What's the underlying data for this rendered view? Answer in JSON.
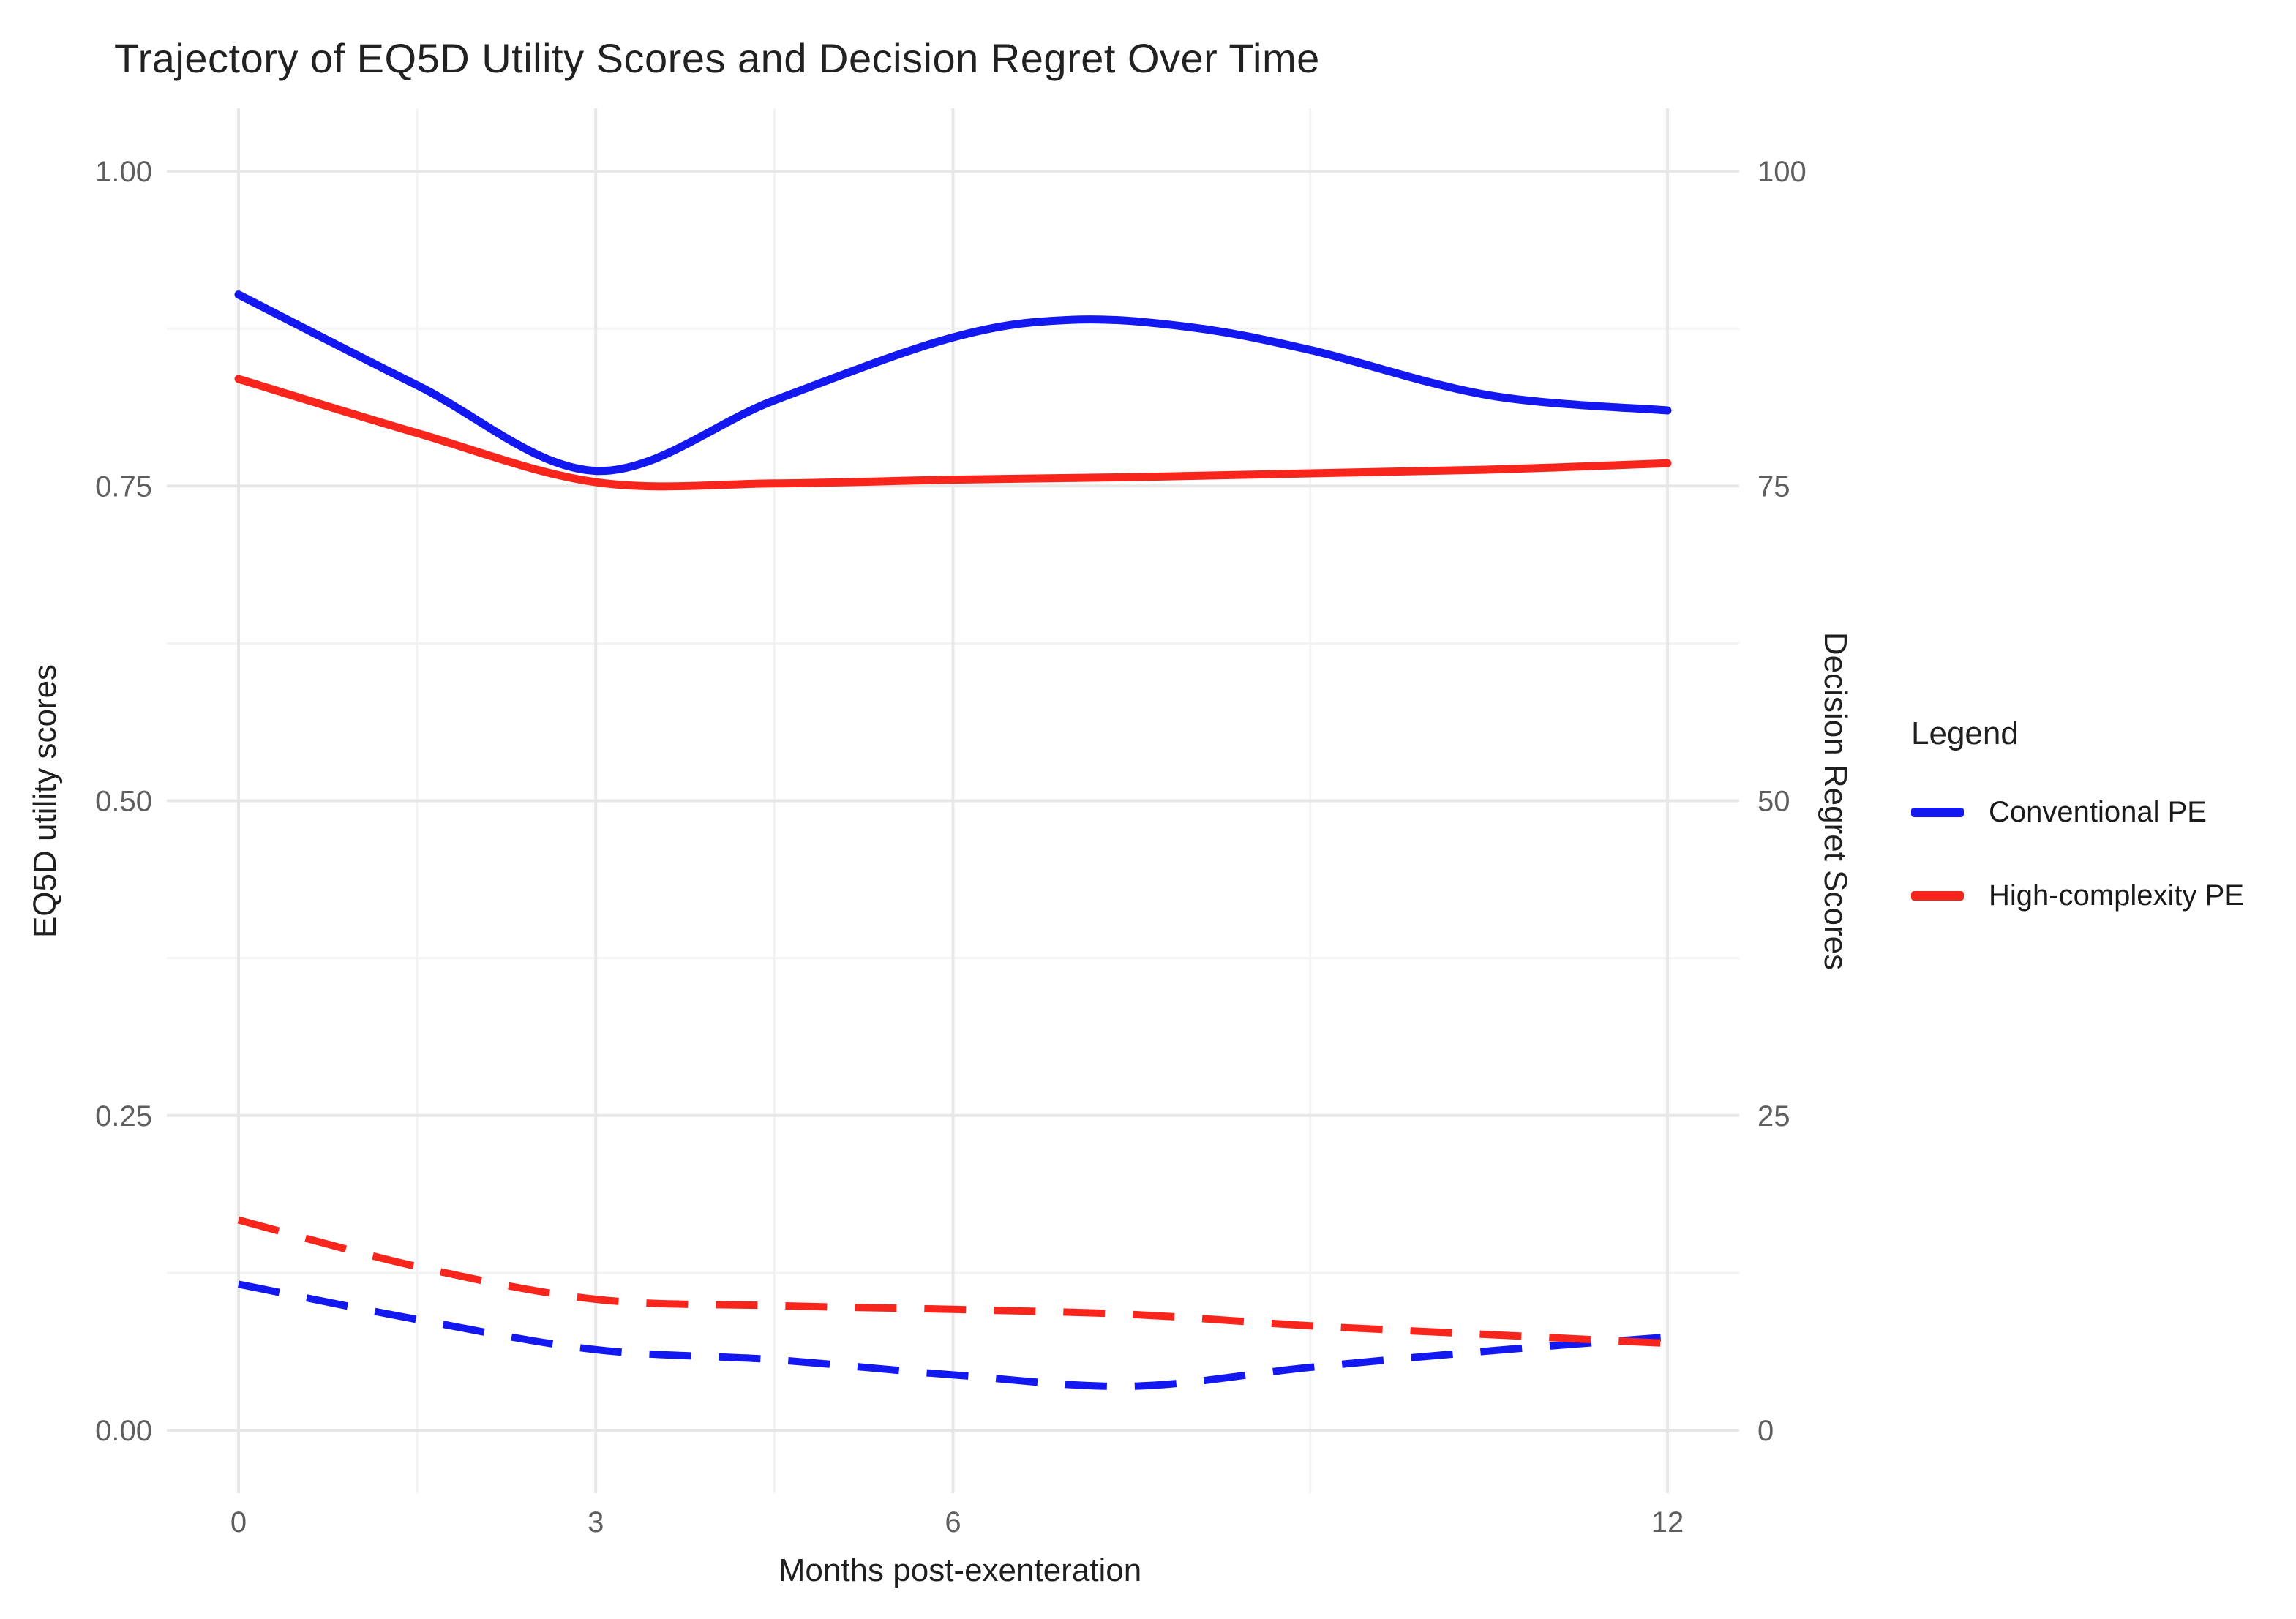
{
  "chart_data": {
    "type": "line",
    "title": "Trajectory of EQ5D Utility Scores and Decision Regret Over Time",
    "xlabel": "Months post-exenteration",
    "ylabel_left": "EQ5D utility scores",
    "ylabel_right": "Decision Regret Scores",
    "background": "#FFFFFF",
    "grid": {
      "major_color": "#E7E7E7",
      "minor_color": "#F3F3F3",
      "grid_on": true
    },
    "tick_label_color": "#5E5E5E",
    "x_axis": {
      "ticks": [
        0,
        3,
        6,
        12
      ],
      "tick_labels": [
        "0",
        "3",
        "6",
        "12"
      ],
      "minor_ticks": [
        1.5,
        4.5,
        9
      ],
      "range": [
        0,
        12
      ]
    },
    "y_axis_left": {
      "ticks": [
        0,
        0.25,
        0.5,
        0.75,
        1
      ],
      "tick_labels": [
        "0.00",
        "0.25",
        "0.50",
        "0.75",
        "1.00"
      ],
      "minor_ticks": [
        0.125,
        0.375,
        0.625,
        0.875
      ],
      "range": [
        0,
        1
      ]
    },
    "y_axis_right": {
      "ticks": [
        0,
        25,
        50,
        75,
        100
      ],
      "tick_labels": [
        "0",
        "25",
        "50",
        "75",
        "100"
      ],
      "range": [
        0,
        100
      ]
    },
    "legend": {
      "title": "Legend",
      "position": "right",
      "entries": [
        {
          "label": "Conventional PE",
          "color": "#1318F0",
          "style": "solid"
        },
        {
          "label": "High-complexity PE",
          "color": "#F8251C",
          "style": "solid"
        }
      ]
    },
    "series": [
      {
        "id": "eq5d-conventional",
        "name": "Conventional PE",
        "measure": "EQ5D utility score",
        "axis": "left",
        "style": "solid",
        "color": "#1318F0",
        "x": [
          0,
          1.5,
          3,
          4.5,
          6,
          7,
          8,
          9,
          10.5,
          12
        ],
        "y": [
          0.902,
          0.83,
          0.762,
          0.818,
          0.868,
          0.882,
          0.876,
          0.858,
          0.822,
          0.81
        ]
      },
      {
        "id": "eq5d-high-complexity",
        "name": "High-complexity PE",
        "measure": "EQ5D utility score",
        "axis": "left",
        "style": "solid",
        "color": "#F8251C",
        "x": [
          0,
          1.5,
          3,
          4.5,
          6,
          7.5,
          9,
          10.5,
          12
        ],
        "y": [
          0.835,
          0.792,
          0.753,
          0.752,
          0.755,
          0.757,
          0.76,
          0.763,
          0.768
        ]
      },
      {
        "id": "regret-conventional",
        "name": "Conventional PE",
        "measure": "Decision regret score",
        "axis": "right",
        "style": "dashed",
        "color": "#1318F0",
        "x": [
          0,
          1.5,
          3,
          4.5,
          6,
          7.5,
          9,
          10.5,
          12
        ],
        "y": [
          11.6,
          8.8,
          6.4,
          5.6,
          4.4,
          3.5,
          5.0,
          6.3,
          7.4
        ]
      },
      {
        "id": "regret-high-complexity",
        "name": "High-complexity PE",
        "measure": "Decision regret score",
        "axis": "right",
        "style": "dashed",
        "color": "#F8251C",
        "x": [
          0,
          1.5,
          3,
          4.5,
          6,
          7.5,
          9,
          10.5,
          12
        ],
        "y": [
          16.7,
          13.0,
          10.4,
          9.9,
          9.6,
          9.2,
          8.3,
          7.6,
          6.9
        ]
      }
    ]
  }
}
